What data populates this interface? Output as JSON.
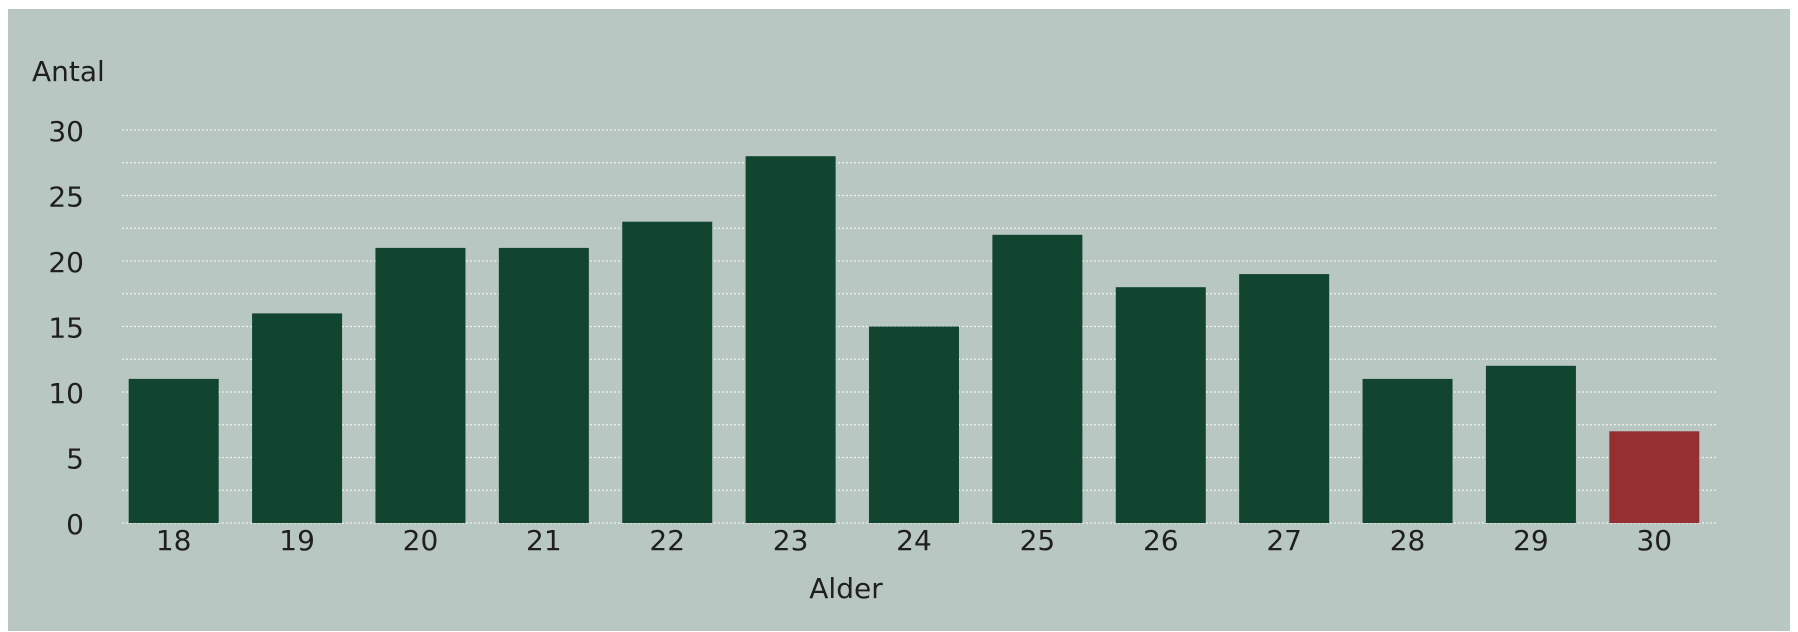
{
  "chart_data": {
    "type": "bar",
    "ylabel": "Antal",
    "xlabel": "Alder",
    "categories": [
      "18",
      "19",
      "20",
      "21",
      "22",
      "23",
      "24",
      "25",
      "26",
      "27",
      "28",
      "29",
      "30"
    ],
    "values": [
      11,
      16,
      21,
      21,
      23,
      28,
      15,
      22,
      18,
      19,
      11,
      12,
      7
    ],
    "ylim": [
      0,
      30
    ],
    "yticks": [
      0,
      5,
      10,
      15,
      20,
      25,
      30
    ],
    "grid": true,
    "colors": {
      "background": "#b8c7c1",
      "bar": "#114530",
      "highlight": "#952f31",
      "gridline": "#eef3f0"
    },
    "highlight_category": "30"
  }
}
